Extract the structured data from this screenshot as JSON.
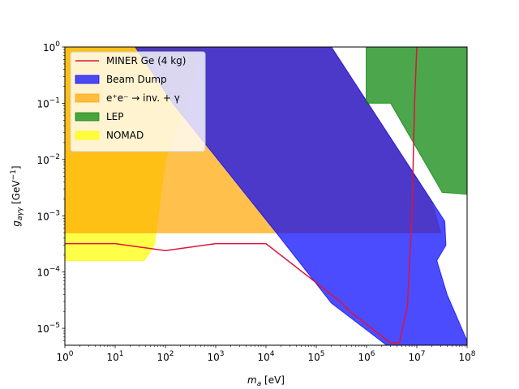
{
  "chart_data": {
    "type": "area",
    "xscale": "log",
    "yscale": "log",
    "xlim": [
      1,
      100000000
    ],
    "ylim": [
      5e-06,
      1
    ],
    "xlabel": "m_a [eV]",
    "ylabel": "g_aγγ [GeV⁻¹]",
    "x_ticks": [
      {
        "value": 1,
        "base": "10",
        "exp": "0"
      },
      {
        "value": 10,
        "base": "10",
        "exp": "1"
      },
      {
        "value": 100,
        "base": "10",
        "exp": "2"
      },
      {
        "value": 1000,
        "base": "10",
        "exp": "3"
      },
      {
        "value": 10000,
        "base": "10",
        "exp": "4"
      },
      {
        "value": 100000,
        "base": "10",
        "exp": "5"
      },
      {
        "value": 1000000,
        "base": "10",
        "exp": "6"
      },
      {
        "value": 10000000,
        "base": "10",
        "exp": "7"
      },
      {
        "value": 100000000,
        "base": "10",
        "exp": "8"
      }
    ],
    "y_ticks": [
      {
        "value": 1e-05,
        "base": "10",
        "exp": "−5"
      },
      {
        "value": 0.0001,
        "base": "10",
        "exp": "−4"
      },
      {
        "value": 0.001,
        "base": "10",
        "exp": "−3"
      },
      {
        "value": 0.01,
        "base": "10",
        "exp": "−2"
      },
      {
        "value": 0.1,
        "base": "10",
        "exp": "−1"
      },
      {
        "value": 1,
        "base": "10",
        "exp": "0"
      }
    ],
    "legend_position": "top-left",
    "series": [
      {
        "name": "NOMAD",
        "kind": "region",
        "color": "#ffff00",
        "opacity": 0.72,
        "points": [
          [
            1,
            1
          ],
          [
            540,
            1
          ],
          [
            265,
            0.1
          ],
          [
            100,
            0.01
          ],
          [
            60,
            0.0003
          ],
          [
            45,
            0.0002
          ],
          [
            38,
            0.00016
          ],
          [
            1,
            0.00016
          ]
        ]
      },
      {
        "name": "e⁺e⁻ → inv. + γ",
        "kind": "region",
        "color": "#ffa500",
        "opacity": 0.7,
        "points": [
          [
            1,
            1
          ],
          [
            200000,
            1
          ],
          [
            20000000,
            0.0018
          ],
          [
            30000000,
            0.0005
          ],
          [
            1,
            0.0005
          ]
        ]
      },
      {
        "name": "Beam Dump",
        "kind": "region",
        "color": "#0000ff",
        "opacity": 0.7,
        "points": [
          [
            200000,
            1
          ],
          [
            20000000,
            0.0018
          ],
          [
            36000000,
            0.0008
          ],
          [
            38000000,
            0.0003
          ],
          [
            25000000,
            0.00016
          ],
          [
            40000000,
            4e-05
          ],
          [
            100000000,
            6e-06
          ],
          [
            100000000,
            5e-06
          ],
          [
            2500000,
            5e-06
          ],
          [
            200000,
            2.8e-05
          ],
          [
            16000,
            0.0005
          ],
          [
            140,
            0.1
          ],
          [
            25,
            1
          ]
        ]
      },
      {
        "name": "LEP",
        "kind": "region",
        "color": "#008000",
        "opacity": 0.7,
        "points": [
          [
            980000,
            1
          ],
          [
            100000000,
            1
          ],
          [
            100000000,
            0.0024
          ],
          [
            60000000,
            0.0025
          ],
          [
            32000000,
            0.0026
          ],
          [
            3000000,
            0.1
          ],
          [
            980000,
            0.1
          ]
        ]
      },
      {
        "name": "MINER Ge (4 kg)",
        "kind": "line",
        "color": "#dc143c",
        "points": [
          [
            1,
            0.00032
          ],
          [
            10,
            0.00032
          ],
          [
            100,
            0.00024
          ],
          [
            1000,
            0.00032
          ],
          [
            10000,
            0.00032
          ],
          [
            300000,
            3e-05
          ],
          [
            500000,
            1.9e-05
          ],
          [
            3000000,
            5.5e-06
          ],
          [
            4500000,
            5.5e-06
          ],
          [
            6500000,
            2.5e-05
          ],
          [
            8000000,
            0.001
          ],
          [
            9000000,
            0.1
          ],
          [
            10000000,
            1
          ]
        ]
      }
    ],
    "legend": [
      {
        "label": "MINER Ge (4 kg)",
        "kind": "line",
        "color": "#dc143c"
      },
      {
        "label": "Beam Dump",
        "kind": "patch",
        "color": "#0000ff",
        "opacity": 0.7
      },
      {
        "label": "e⁺e⁻ → inv. + γ",
        "kind": "patch",
        "color": "#ffa500",
        "opacity": 0.7
      },
      {
        "label": "LEP",
        "kind": "patch",
        "color": "#008000",
        "opacity": 0.7
      },
      {
        "label": "NOMAD",
        "kind": "patch",
        "color": "#ffff00",
        "opacity": 0.72
      }
    ]
  }
}
